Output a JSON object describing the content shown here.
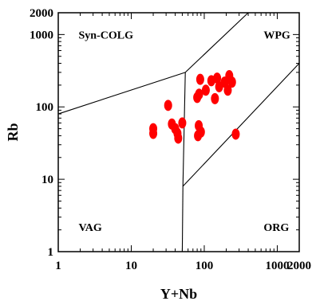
{
  "chart_data": {
    "type": "scatter",
    "xlabel": "Y+Nb",
    "ylabel": "Rb",
    "xscale": "log",
    "yscale": "log",
    "xlim": [
      1,
      2000
    ],
    "ylim": [
      1,
      2000
    ],
    "grid": false,
    "x_ticks": [
      {
        "value": 1,
        "label": "1"
      },
      {
        "value": 10,
        "label": "10"
      },
      {
        "value": 100,
        "label": "100"
      },
      {
        "value": 1000,
        "label": "1000"
      },
      {
        "value": 2000,
        "label": "2000"
      }
    ],
    "y_ticks": [
      {
        "value": 1,
        "label": "1"
      },
      {
        "value": 10,
        "label": "10"
      },
      {
        "value": 100,
        "label": "100"
      },
      {
        "value": 1000,
        "label": "1000"
      },
      {
        "value": 2000,
        "label": "2000"
      }
    ],
    "regions": [
      {
        "label": "Syn-COLG",
        "x": 1.9,
        "y": 1000
      },
      {
        "label": "WPG",
        "x": 650,
        "y": 1000
      },
      {
        "label": "VAG",
        "x": 1.9,
        "y": 2.2
      },
      {
        "label": "ORG",
        "x": 650,
        "y": 2.2
      }
    ],
    "boundaries": [
      [
        [
          1,
          80
        ],
        [
          55,
          300
        ]
      ],
      [
        [
          55,
          300
        ],
        [
          400,
          2000
        ]
      ],
      [
        [
          55,
          300
        ],
        [
          51,
          8
        ]
      ],
      [
        [
          51,
          8
        ],
        [
          2000,
          400
        ]
      ],
      [
        [
          51,
          8
        ],
        [
          50,
          1
        ]
      ]
    ],
    "marker_color": "#ff0000",
    "points": [
      {
        "x": 20,
        "y": 50
      },
      {
        "x": 20,
        "y": 43
      },
      {
        "x": 32,
        "y": 105
      },
      {
        "x": 36,
        "y": 58
      },
      {
        "x": 40,
        "y": 50
      },
      {
        "x": 43,
        "y": 43
      },
      {
        "x": 44,
        "y": 37
      },
      {
        "x": 50,
        "y": 60
      },
      {
        "x": 80,
        "y": 135
      },
      {
        "x": 85,
        "y": 150
      },
      {
        "x": 88,
        "y": 240
      },
      {
        "x": 84,
        "y": 55
      },
      {
        "x": 90,
        "y": 45
      },
      {
        "x": 82,
        "y": 40
      },
      {
        "x": 105,
        "y": 170
      },
      {
        "x": 125,
        "y": 230
      },
      {
        "x": 140,
        "y": 130
      },
      {
        "x": 150,
        "y": 250
      },
      {
        "x": 160,
        "y": 190
      },
      {
        "x": 190,
        "y": 220
      },
      {
        "x": 210,
        "y": 170
      },
      {
        "x": 220,
        "y": 270
      },
      {
        "x": 240,
        "y": 220
      },
      {
        "x": 270,
        "y": 42
      }
    ]
  }
}
